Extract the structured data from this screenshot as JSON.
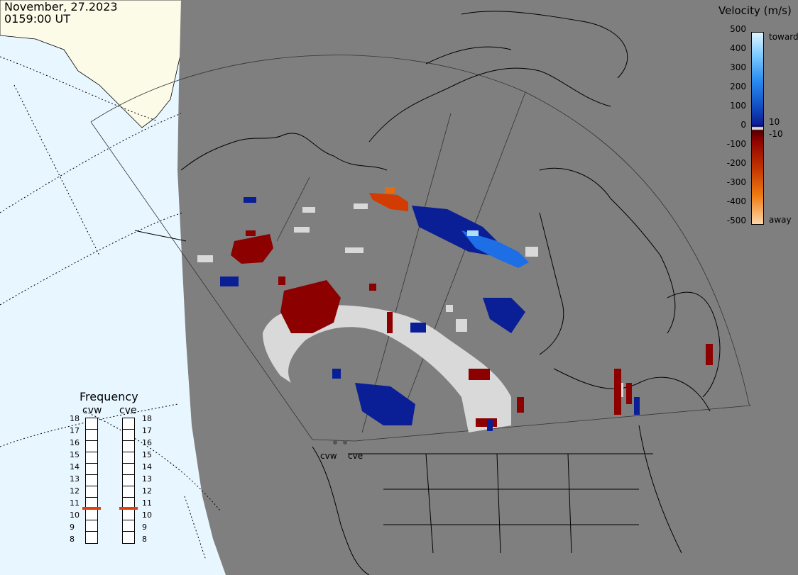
{
  "header": {
    "date": "November, 27.2023",
    "time": "0159:00 UT"
  },
  "velocity_legend": {
    "title": "Velocity (m/s)",
    "ticks": [
      "500",
      "400",
      "300",
      "200",
      "100",
      "0",
      "-100",
      "-200",
      "-300",
      "-400",
      "-500"
    ],
    "small_labels": [
      "10",
      "-10"
    ],
    "toward_label": "toward",
    "away_label": "away"
  },
  "frequency": {
    "title": "Frequency",
    "left_radar": "cvw",
    "right_radar": "cve",
    "scale": [
      "18",
      "17",
      "16",
      "15",
      "14",
      "13",
      "12",
      "11",
      "10",
      "9",
      "8"
    ],
    "cvw_value": 11,
    "cve_value": 11
  },
  "radar_sites": [
    "cvw",
    "cve"
  ],
  "colors": {
    "ocean": "#e8f6ff",
    "land_day": "#fcfbe8",
    "night": "#7f7f7f",
    "toward": "#0a1e96",
    "away": "#8c0000",
    "ground_scatter": "#d9d9d9",
    "freq_marker": "#e04010"
  }
}
